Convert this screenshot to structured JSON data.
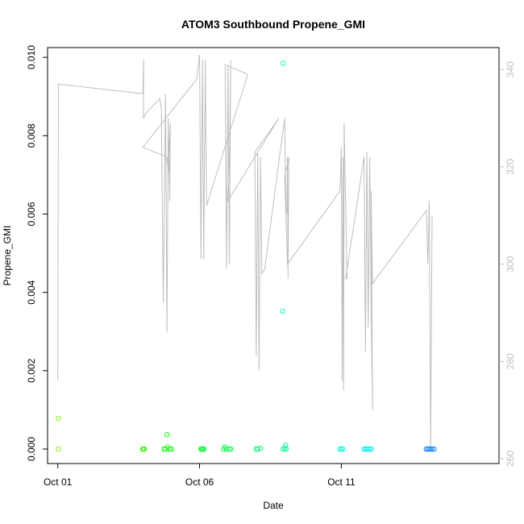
{
  "chart_data": {
    "type": "scatter",
    "title": "ATOM3 Southbound Propene_GMI",
    "xlabel": "Date",
    "ylabel": "Propene_GMI",
    "x_ticks": [
      "Oct 01",
      "Oct 06",
      "Oct 11"
    ],
    "x_tick_days": [
      1,
      6,
      11
    ],
    "xlim": [
      0.64,
      16.56
    ],
    "ylim": [
      -0.00037,
      0.01025
    ],
    "y_ticks": [
      "0.000",
      "0.002",
      "0.004",
      "0.006",
      "0.008",
      "0.010"
    ],
    "y_tick_values": [
      0,
      0.002,
      0.004,
      0.006,
      0.008,
      0.01
    ],
    "y2lim": [
      259,
      344.5
    ],
    "y2_ticks": [
      "260",
      "280",
      "300",
      "320",
      "340"
    ],
    "y2_tick_values": [
      260,
      280,
      300,
      320,
      340
    ],
    "grid": false,
    "colors": {
      "line": "#bebebe",
      "axis": "#000000",
      "right_axis": "#bebebe"
    },
    "points": [
      {
        "x": 1.02,
        "y": 0.00078,
        "color": "#7cff00"
      },
      {
        "x": 1.02,
        "y": 0.0,
        "color": "#7cff00"
      },
      {
        "x": 4.0,
        "y": 0.0,
        "color": "#2cff00"
      },
      {
        "x": 4.03,
        "y": 0.0,
        "color": "#2cff00"
      },
      {
        "x": 4.05,
        "y": 0.0,
        "color": "#2cff00"
      },
      {
        "x": 4.75,
        "y": 0.0,
        "color": "#17ff14"
      },
      {
        "x": 4.8,
        "y": 0.0,
        "color": "#17ff14"
      },
      {
        "x": 4.85,
        "y": 0.00037,
        "color": "#17ff14"
      },
      {
        "x": 4.88,
        "y": 5e-05,
        "color": "#17ff14"
      },
      {
        "x": 4.95,
        "y": 0.0,
        "color": "#17ff14"
      },
      {
        "x": 5.0,
        "y": 0.0,
        "color": "#17ff14"
      },
      {
        "x": 6.05,
        "y": 0.0,
        "color": "#10ff3a"
      },
      {
        "x": 6.08,
        "y": 0.0,
        "color": "#10ff3a"
      },
      {
        "x": 6.12,
        "y": 0.0,
        "color": "#10ff3a"
      },
      {
        "x": 6.15,
        "y": 0.0,
        "color": "#10ff3a"
      },
      {
        "x": 6.85,
        "y": 0.0,
        "color": "#10ff4e"
      },
      {
        "x": 6.9,
        "y": 5e-05,
        "color": "#10ff4e"
      },
      {
        "x": 6.95,
        "y": 0.0,
        "color": "#10ff4e"
      },
      {
        "x": 7.05,
        "y": 0.0,
        "color": "#10ff4e"
      },
      {
        "x": 7.1,
        "y": 0.0,
        "color": "#10ff4e"
      },
      {
        "x": 8.0,
        "y": 0.0,
        "color": "#10ff78"
      },
      {
        "x": 8.05,
        "y": 0.0,
        "color": "#10ff78"
      },
      {
        "x": 8.15,
        "y": 2e-05,
        "color": "#10ff78"
      },
      {
        "x": 8.95,
        "y": 0.00985,
        "color": "#10ffa0"
      },
      {
        "x": 8.93,
        "y": 0.00352,
        "color": "#10ffa0"
      },
      {
        "x": 8.95,
        "y": 0.0,
        "color": "#10ffa0"
      },
      {
        "x": 9.0,
        "y": 2e-05,
        "color": "#10ffa0"
      },
      {
        "x": 9.03,
        "y": 0.0001,
        "color": "#10ffa0"
      },
      {
        "x": 9.05,
        "y": 0.0,
        "color": "#10ffa0"
      },
      {
        "x": 10.95,
        "y": 0.0,
        "color": "#10ffe0"
      },
      {
        "x": 11.0,
        "y": 0.0,
        "color": "#10ffe0"
      },
      {
        "x": 11.05,
        "y": 0.0,
        "color": "#10ffe0"
      },
      {
        "x": 11.8,
        "y": 0.0,
        "color": "#10f0f8"
      },
      {
        "x": 11.85,
        "y": 0.0,
        "color": "#10f0f8"
      },
      {
        "x": 11.9,
        "y": 0.0,
        "color": "#10f0f8"
      },
      {
        "x": 11.95,
        "y": 0.0,
        "color": "#10f0f8"
      },
      {
        "x": 12.0,
        "y": 0.0,
        "color": "#10f0f8"
      },
      {
        "x": 12.05,
        "y": 0.0,
        "color": "#10f0f8"
      },
      {
        "x": 14.0,
        "y": 0.0,
        "color": "#1a8cff"
      },
      {
        "x": 14.05,
        "y": 0.0,
        "color": "#1a8cff"
      },
      {
        "x": 14.1,
        "y": 0.0,
        "color": "#1a8cff"
      },
      {
        "x": 14.15,
        "y": 0.0,
        "color": "#1a8cff"
      },
      {
        "x": 14.2,
        "y": 0.0,
        "color": "#1a8cff"
      },
      {
        "x": 14.27,
        "y": 0.0,
        "color": "#1a8cff"
      }
    ],
    "line_series": {
      "axis": "right",
      "values": [
        [
          1.0,
          276
        ],
        [
          1.02,
          337
        ],
        [
          4.0,
          335
        ],
        [
          4.03,
          342
        ],
        [
          4.02,
          330
        ],
        [
          4.1,
          331
        ],
        [
          4.6,
          334
        ],
        [
          4.65,
          332
        ],
        [
          4.72,
          292
        ],
        [
          4.8,
          335
        ],
        [
          4.85,
          286
        ],
        [
          4.9,
          330
        ],
        [
          4.95,
          313
        ],
        [
          4.97,
          329
        ],
        [
          4.9,
          319
        ],
        [
          4.85,
          322
        ],
        [
          4.0,
          324
        ],
        [
          5.9,
          338
        ],
        [
          6.0,
          343
        ],
        [
          6.05,
          301
        ],
        [
          6.1,
          342
        ],
        [
          6.15,
          301
        ],
        [
          6.2,
          342
        ],
        [
          6.25,
          312
        ],
        [
          7.7,
          339
        ],
        [
          6.9,
          341
        ],
        [
          6.95,
          299
        ],
        [
          7.0,
          341
        ],
        [
          7.05,
          300
        ],
        [
          7.1,
          342
        ],
        [
          7.05,
          320
        ],
        [
          7.0,
          313
        ],
        [
          8.8,
          330
        ],
        [
          7.95,
          323
        ],
        [
          8.0,
          281
        ],
        [
          8.05,
          323
        ],
        [
          8.1,
          278
        ],
        [
          8.15,
          322
        ],
        [
          8.2,
          298
        ],
        [
          8.3,
          299
        ],
        [
          9.0,
          330
        ],
        [
          9.05,
          310
        ],
        [
          9.08,
          311
        ],
        [
          9.1,
          322
        ],
        [
          9.12,
          297
        ],
        [
          9.15,
          322
        ],
        [
          9.0,
          318
        ],
        [
          9.1,
          300
        ],
        [
          10.95,
          315
        ],
        [
          11.0,
          324
        ],
        [
          11.03,
          276
        ],
        [
          11.06,
          322
        ],
        [
          11.08,
          274
        ],
        [
          11.1,
          329
        ],
        [
          11.2,
          297
        ],
        [
          11.15,
          297
        ],
        [
          11.8,
          322
        ],
        [
          11.85,
          282
        ],
        [
          11.9,
          323
        ],
        [
          11.95,
          287
        ],
        [
          12.0,
          322
        ],
        [
          12.05,
          290
        ],
        [
          12.1,
          270
        ],
        [
          12.05,
          315
        ],
        [
          12.1,
          296
        ],
        [
          14.0,
          311
        ],
        [
          14.05,
          300
        ],
        [
          14.1,
          313
        ],
        [
          14.15,
          262
        ],
        [
          14.2,
          310
        ]
      ]
    }
  }
}
